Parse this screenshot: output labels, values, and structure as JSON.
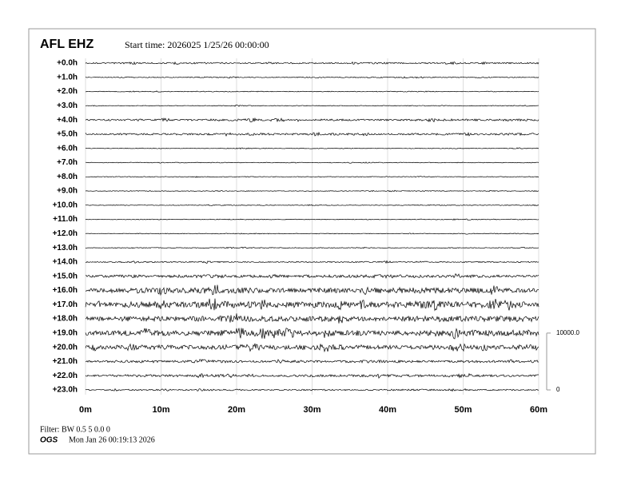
{
  "header": {
    "station": "AFL EHZ",
    "start_time": "Start time: 2026025  1/25/26 00:00:00"
  },
  "chart_data": {
    "type": "helicorder",
    "categories": [
      "+0.0h",
      "+1.0h",
      "+2.0h",
      "+3.0h",
      "+4.0h",
      "+5.0h",
      "+6.0h",
      "+7.0h",
      "+8.0h",
      "+9.0h",
      "+10.0h",
      "+11.0h",
      "+12.0h",
      "+13.0h",
      "+14.0h",
      "+15.0h",
      "+16.0h",
      "+17.0h",
      "+18.0h",
      "+19.0h",
      "+20.0h",
      "+21.0h",
      "+22.0h",
      "+23.0h"
    ],
    "values": [
      300,
      200,
      150,
      150,
      400,
      400,
      150,
      150,
      150,
      150,
      150,
      150,
      150,
      150,
      250,
      600,
      1100,
      1300,
      1100,
      1200,
      1000,
      500,
      500,
      300
    ],
    "xlim": [
      0,
      60
    ],
    "xticks": [
      {
        "value": 0,
        "label": "0m"
      },
      {
        "value": 10,
        "label": "10m"
      },
      {
        "value": 20,
        "label": "20m"
      },
      {
        "value": 30,
        "label": "30m"
      },
      {
        "value": 40,
        "label": "40m"
      },
      {
        "value": 50,
        "label": "50m"
      },
      {
        "value": 60,
        "label": "60m"
      }
    ],
    "y2lim": [
      0,
      10000
    ],
    "y2ticks": [
      0,
      {
        "value": 10000,
        "label": "10000.0"
      }
    ],
    "grid": true,
    "color": "#000000"
  },
  "footer": {
    "filter": "Filter: BW 0.5 5 0.0 0",
    "org": "OGS",
    "timestamp": "Mon Jan 26 00:19:13 2026"
  }
}
